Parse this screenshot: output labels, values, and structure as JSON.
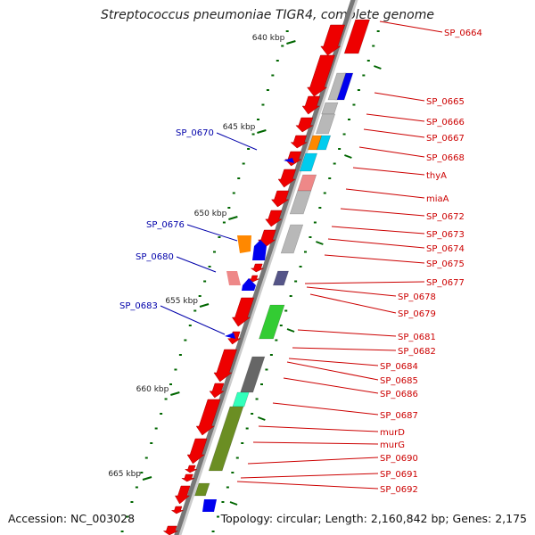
{
  "title": "Streptococcus pneumoniae TIGR4, complete genome",
  "footer": {
    "accession": "Accession: NC_003028",
    "topology": "Topology: circular; Length: 2,160,842 bp; Genes: 2,175"
  },
  "colors": {
    "forward_gene": "#ee0000",
    "label_right": "#cc0000",
    "label_left": "#0000aa",
    "tick": "#006600",
    "backbone": "#777777"
  },
  "kbp_ticks": [
    "640 kbp",
    "645 kbp",
    "650 kbp",
    "655 kbp",
    "660 kbp",
    "665 kbp"
  ],
  "labels_right": [
    "SP_0664",
    "SP_0665",
    "SP_0666",
    "SP_0667",
    "SP_0668",
    "thyA",
    "miaA",
    "SP_0672",
    "SP_0673",
    "SP_0674",
    "SP_0675",
    "SP_0677",
    "SP_0678",
    "SP_0679",
    "SP_0681",
    "SP_0682",
    "SP_0684",
    "SP_0685",
    "SP_0686",
    "SP_0687",
    "murD",
    "murG",
    "SP_0690",
    "SP_0691",
    "SP_0692"
  ],
  "labels_left": [
    "SP_0670",
    "SP_0676",
    "SP_0680",
    "SP_0683"
  ],
  "gene_colors": {
    "red": "#ee0000",
    "blue": "#0000ee",
    "grey": "#b8b8b8",
    "dark_grey": "#666666",
    "orange": "#ff8800",
    "cyan": "#00ccee",
    "pink": "#ee8888",
    "green": "#33cc33",
    "olive": "#6b8e23",
    "aqua": "#33ffbb",
    "slate": "#555588"
  }
}
